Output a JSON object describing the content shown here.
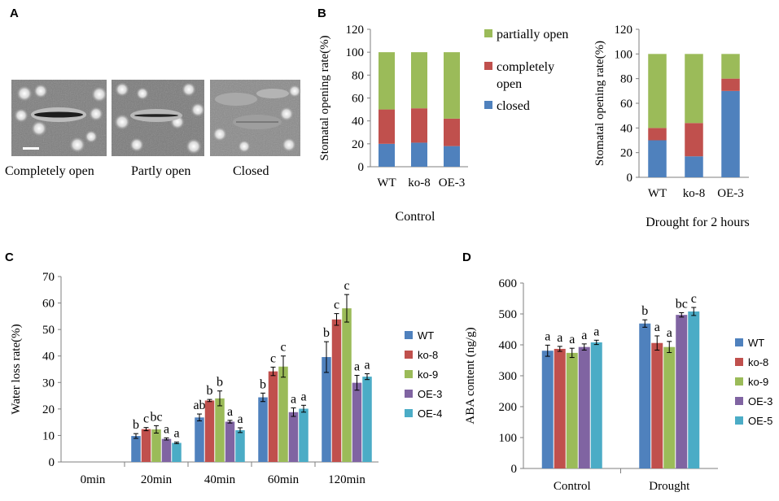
{
  "panel_a": {
    "letter": "A",
    "captions": [
      "Completely  open",
      "Partly open",
      "Closed"
    ]
  },
  "colors": {
    "blue": "#4f81bd",
    "red": "#c0504d",
    "green": "#9bbb59",
    "purple": "#8064a2",
    "cyan": "#4bacc6"
  },
  "chart_data": [
    {
      "id": "B1",
      "letter": "B",
      "type": "bar",
      "stacked": true,
      "title": "Control",
      "ylabel": "Stomatal opening rate(%)",
      "ylim": [
        0,
        120
      ],
      "yticks": [
        0,
        20,
        40,
        60,
        80,
        100,
        120
      ],
      "categories": [
        "WT",
        "ko-8",
        "OE-3"
      ],
      "series": [
        {
          "name": "closed",
          "color": "#4f81bd",
          "values": [
            20,
            21,
            18
          ]
        },
        {
          "name": "completely open",
          "color": "#c0504d",
          "values": [
            30,
            30,
            24
          ]
        },
        {
          "name": "partially open",
          "color": "#9bbb59",
          "values": [
            50,
            49,
            58
          ]
        }
      ],
      "legend": {
        "position": "top-right",
        "entries": [
          {
            "color": "#9bbb59",
            "lines": [
              "partially open"
            ]
          },
          {
            "color": "#c0504d",
            "lines": [
              "completely",
              "open"
            ]
          },
          {
            "color": "#4f81bd",
            "lines": [
              "closed"
            ]
          }
        ]
      }
    },
    {
      "id": "B2",
      "type": "bar",
      "stacked": true,
      "title": "Drought  for 2 hours",
      "ylabel": "Stomatal opening  rate(%)",
      "ylim": [
        0,
        120
      ],
      "yticks": [
        0,
        20,
        40,
        60,
        80,
        100,
        120
      ],
      "categories": [
        "WT",
        "ko-8",
        "OE-3"
      ],
      "series": [
        {
          "name": "closed",
          "color": "#4f81bd",
          "values": [
            30,
            17,
            70
          ]
        },
        {
          "name": "completely open",
          "color": "#c0504d",
          "values": [
            10,
            27,
            10
          ]
        },
        {
          "name": "partially open",
          "color": "#9bbb59",
          "values": [
            60,
            56,
            20
          ]
        }
      ]
    },
    {
      "id": "C",
      "letter": "C",
      "type": "bar",
      "title": "",
      "ylabel": "Water loss rate(%)",
      "ylim": [
        0,
        70
      ],
      "yticks": [
        0,
        10,
        20,
        30,
        40,
        50,
        60,
        70
      ],
      "categories": [
        "0min",
        "20min",
        "40min",
        "60min",
        "120min"
      ],
      "series": [
        {
          "name": "WT",
          "color": "#4f81bd",
          "values": [
            0,
            9.8,
            16.8,
            24.4,
            39.6
          ],
          "errors": [
            0,
            0.9,
            1.3,
            1.6,
            5.8
          ],
          "labels": [
            "",
            "b",
            "ab",
            "b",
            "b"
          ]
        },
        {
          "name": "ko-8",
          "color": "#c0504d",
          "values": [
            0,
            12.4,
            23.2,
            34.2,
            53.8
          ],
          "errors": [
            0,
            0.6,
            0.4,
            1.6,
            2.2
          ],
          "labels": [
            "",
            "c",
            "b",
            "c",
            "c"
          ]
        },
        {
          "name": "ko-9",
          "color": "#9bbb59",
          "values": [
            0,
            12.3,
            24.0,
            36.0,
            58.0
          ],
          "errors": [
            0,
            1.4,
            2.8,
            4.0,
            5.2
          ],
          "labels": [
            "",
            "bc",
            "b",
            "c",
            "c"
          ]
        },
        {
          "name": "OE-3",
          "color": "#8064a2",
          "values": [
            0,
            8.7,
            15.2,
            18.8,
            29.9
          ],
          "errors": [
            0,
            0.4,
            0.5,
            1.6,
            2.8
          ],
          "labels": [
            "",
            "a",
            "a",
            "a",
            "a"
          ]
        },
        {
          "name": "OE-4",
          "color": "#4bacc6",
          "values": [
            0,
            7.2,
            12.0,
            20.1,
            32.2
          ],
          "errors": [
            0,
            0.3,
            0.9,
            1.3,
            1.1
          ],
          "labels": [
            "",
            "a",
            "a",
            "a",
            "a"
          ]
        }
      ],
      "legend": {
        "position": "right"
      }
    },
    {
      "id": "D",
      "letter": "D",
      "type": "bar",
      "title": "",
      "ylabel": "ABA content (ng/g)",
      "ylim": [
        0,
        600
      ],
      "yticks": [
        0,
        100,
        200,
        300,
        400,
        500,
        600
      ],
      "categories": [
        "Control",
        "Drought"
      ],
      "series": [
        {
          "name": "WT",
          "color": "#4f81bd",
          "values": [
            381,
            469
          ],
          "errors": [
            18,
            12
          ],
          "labels": [
            "a",
            "b"
          ]
        },
        {
          "name": "ko-8",
          "color": "#c0504d",
          "values": [
            387,
            406
          ],
          "errors": [
            8,
            23
          ],
          "labels": [
            "a",
            "a"
          ]
        },
        {
          "name": "ko-9",
          "color": "#9bbb59",
          "values": [
            374,
            393
          ],
          "errors": [
            15,
            18
          ],
          "labels": [
            "a",
            "a"
          ]
        },
        {
          "name": "OE-3",
          "color": "#8064a2",
          "values": [
            393,
            497
          ],
          "errors": [
            10,
            7
          ],
          "labels": [
            "a",
            "bc"
          ]
        },
        {
          "name": "OE-5",
          "color": "#4bacc6",
          "values": [
            408,
            508
          ],
          "errors": [
            7,
            13
          ],
          "labels": [
            "a",
            "c"
          ]
        }
      ],
      "legend": {
        "position": "right"
      }
    }
  ]
}
